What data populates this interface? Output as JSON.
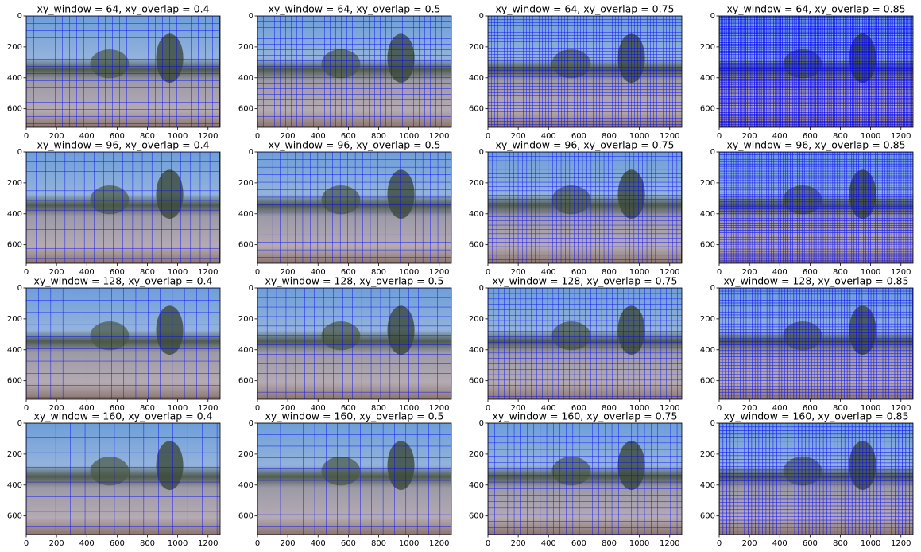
{
  "chart_data": [
    {
      "type": "image",
      "title": "xy_window = 64, xy_overlap = 0.4",
      "xlim": [
        0,
        1280
      ],
      "ylim": [
        720,
        0
      ],
      "xticks": [
        0,
        200,
        400,
        600,
        800,
        1000,
        1200
      ],
      "yticks": [
        0,
        200,
        400,
        600
      ]
    },
    {
      "type": "image",
      "title": "xy_window = 64, xy_overlap = 0.5",
      "xlim": [
        0,
        1280
      ],
      "ylim": [
        720,
        0
      ],
      "xticks": [
        0,
        200,
        400,
        600,
        800,
        1000,
        1200
      ],
      "yticks": [
        0,
        200,
        400,
        600
      ]
    },
    {
      "type": "image",
      "title": "xy_window = 64, xy_overlap = 0.75",
      "xlim": [
        0,
        1280
      ],
      "ylim": [
        720,
        0
      ],
      "xticks": [
        0,
        200,
        400,
        600,
        800,
        1000,
        1200
      ],
      "yticks": [
        0,
        200,
        400,
        600
      ]
    },
    {
      "type": "image",
      "title": "xy_window = 64, xy_overlap = 0.85",
      "xlim": [
        0,
        1280
      ],
      "ylim": [
        720,
        0
      ],
      "xticks": [
        0,
        200,
        400,
        600,
        800,
        1000,
        1200
      ],
      "yticks": [
        0,
        200,
        400,
        600
      ]
    },
    {
      "type": "image",
      "title": "xy_window = 96, xy_overlap = 0.4",
      "xlim": [
        0,
        1280
      ],
      "ylim": [
        720,
        0
      ],
      "xticks": [
        0,
        200,
        400,
        600,
        800,
        1000,
        1200
      ],
      "yticks": [
        0,
        200,
        400,
        600
      ]
    },
    {
      "type": "image",
      "title": "xy_window = 96, xy_overlap = 0.5",
      "xlim": [
        0,
        1280
      ],
      "ylim": [
        720,
        0
      ],
      "xticks": [
        0,
        200,
        400,
        600,
        800,
        1000,
        1200
      ],
      "yticks": [
        0,
        200,
        400,
        600
      ]
    },
    {
      "type": "image",
      "title": "xy_window = 96, xy_overlap = 0.75",
      "xlim": [
        0,
        1280
      ],
      "ylim": [
        720,
        0
      ],
      "xticks": [
        0,
        200,
        400,
        600,
        800,
        1000,
        1200
      ],
      "yticks": [
        0,
        200,
        400,
        600
      ]
    },
    {
      "type": "image",
      "title": "xy_window = 96, xy_overlap = 0.85",
      "xlim": [
        0,
        1280
      ],
      "ylim": [
        720,
        0
      ],
      "xticks": [
        0,
        200,
        400,
        600,
        800,
        1000,
        1200
      ],
      "yticks": [
        0,
        200,
        400,
        600
      ]
    },
    {
      "type": "image",
      "title": "xy_window = 128, xy_overlap = 0.4",
      "xlim": [
        0,
        1280
      ],
      "ylim": [
        720,
        0
      ],
      "xticks": [
        0,
        200,
        400,
        600,
        800,
        1000,
        1200
      ],
      "yticks": [
        0,
        200,
        400,
        600
      ]
    },
    {
      "type": "image",
      "title": "xy_window = 128, xy_overlap = 0.5",
      "xlim": [
        0,
        1280
      ],
      "ylim": [
        720,
        0
      ],
      "xticks": [
        0,
        200,
        400,
        600,
        800,
        1000,
        1200
      ],
      "yticks": [
        0,
        200,
        400,
        600
      ]
    },
    {
      "type": "image",
      "title": "xy_window = 128, xy_overlap = 0.75",
      "xlim": [
        0,
        1280
      ],
      "ylim": [
        720,
        0
      ],
      "xticks": [
        0,
        200,
        400,
        600,
        800,
        1000,
        1200
      ],
      "yticks": [
        0,
        200,
        400,
        600
      ]
    },
    {
      "type": "image",
      "title": "xy_window = 128, xy_overlap = 0.85",
      "xlim": [
        0,
        1280
      ],
      "ylim": [
        720,
        0
      ],
      "xticks": [
        0,
        200,
        400,
        600,
        800,
        1000,
        1200
      ],
      "yticks": [
        0,
        200,
        400,
        600
      ]
    },
    {
      "type": "image",
      "title": "xy_window = 160, xy_overlap = 0.4",
      "xlim": [
        0,
        1280
      ],
      "ylim": [
        720,
        0
      ],
      "xticks": [
        0,
        200,
        400,
        600,
        800,
        1000,
        1200
      ],
      "yticks": [
        0,
        200,
        400,
        600
      ]
    },
    {
      "type": "image",
      "title": "xy_window = 160, xy_overlap = 0.5",
      "xlim": [
        0,
        1280
      ],
      "ylim": [
        720,
        0
      ],
      "xticks": [
        0,
        200,
        400,
        600,
        800,
        1000,
        1200
      ],
      "yticks": [
        0,
        200,
        400,
        600
      ]
    },
    {
      "type": "image",
      "title": "xy_window = 160, xy_overlap = 0.75",
      "xlim": [
        0,
        1280
      ],
      "ylim": [
        720,
        0
      ],
      "xticks": [
        0,
        200,
        400,
        600,
        800,
        1000,
        1200
      ],
      "yticks": [
        0,
        200,
        400,
        600
      ]
    },
    {
      "type": "image",
      "title": "xy_window = 160, xy_overlap = 0.85",
      "xlim": [
        0,
        1280
      ],
      "ylim": [
        720,
        0
      ],
      "xticks": [
        0,
        200,
        400,
        600,
        800,
        1000,
        1200
      ],
      "yticks": [
        0,
        200,
        400,
        600
      ]
    }
  ]
}
